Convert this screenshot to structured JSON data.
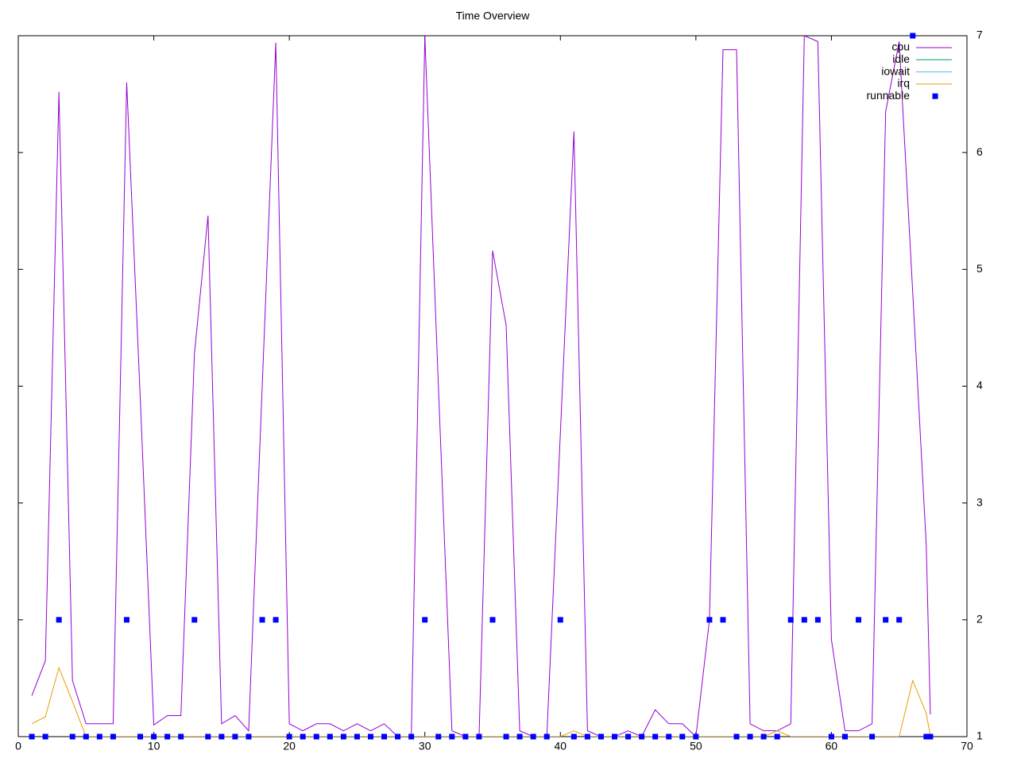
{
  "chart_data": {
    "type": "line",
    "title": "Time Overview",
    "x": [
      1,
      2,
      3,
      4,
      5,
      6,
      7,
      8,
      9,
      10,
      11,
      12,
      13,
      14,
      15,
      16,
      17,
      18,
      19,
      20,
      21,
      22,
      23,
      24,
      25,
      26,
      27,
      28,
      29,
      30,
      31,
      32,
      33,
      34,
      35,
      36,
      37,
      38,
      39,
      40,
      41,
      42,
      43,
      44,
      45,
      46,
      47,
      48,
      49,
      50,
      51,
      52,
      53,
      54,
      55,
      56,
      57,
      58,
      59,
      60,
      61,
      62,
      63,
      64,
      65,
      66,
      67,
      67.3
    ],
    "xlim": [
      0,
      70
    ],
    "xticks": [
      0,
      10,
      20,
      30,
      40,
      50,
      60,
      70
    ],
    "ylim": [
      1,
      7
    ],
    "yticks": [
      1,
      2,
      3,
      4,
      5,
      6,
      7
    ],
    "grid": false,
    "legend": "top-right",
    "series": [
      {
        "name": "cpu",
        "color": "#9400d3",
        "style": "lines",
        "values": [
          1.35,
          1.65,
          6.52,
          1.48,
          1.11,
          1.11,
          1.11,
          6.6,
          3.9,
          1.1,
          1.18,
          1.18,
          4.28,
          5.46,
          1.11,
          1.18,
          1.05,
          4.0,
          6.94,
          1.11,
          1.05,
          1.11,
          1.11,
          1.05,
          1.11,
          1.05,
          1.11,
          1.0,
          1.0,
          7.0,
          4.0,
          1.05,
          1.0,
          1.0,
          5.16,
          4.52,
          1.05,
          1.0,
          1.0,
          3.6,
          6.18,
          1.05,
          1.0,
          1.0,
          1.05,
          1.0,
          1.23,
          1.11,
          1.11,
          1.0,
          2.0,
          6.88,
          6.88,
          1.11,
          1.05,
          1.05,
          1.11,
          7.0,
          6.95,
          1.83,
          1.05,
          1.05,
          1.11,
          6.35,
          6.95,
          4.8,
          2.63,
          1.19
        ]
      },
      {
        "name": "idle",
        "color": "#009e73",
        "style": "lines",
        "values": [
          null,
          null,
          null,
          null,
          null,
          null,
          null,
          null,
          null,
          null,
          null,
          null,
          null,
          null,
          null,
          null,
          null,
          null,
          null,
          null,
          null,
          null,
          null,
          null,
          null,
          null,
          null,
          null,
          null,
          null,
          null,
          null,
          null,
          null,
          null,
          null,
          null,
          null,
          null,
          null,
          null,
          null,
          null,
          null,
          null,
          null,
          null,
          null,
          null,
          null,
          null,
          null,
          null,
          null,
          null,
          null,
          null,
          null,
          null,
          null,
          null,
          null,
          null,
          null,
          null,
          null,
          null,
          null
        ]
      },
      {
        "name": "iowait",
        "color": "#56b4e9",
        "style": "lines",
        "values": [
          null,
          null,
          null,
          null,
          null,
          null,
          null,
          null,
          null,
          null,
          null,
          null,
          null,
          null,
          null,
          null,
          null,
          null,
          null,
          null,
          null,
          null,
          null,
          null,
          null,
          null,
          null,
          null,
          null,
          null,
          null,
          null,
          null,
          null,
          null,
          null,
          null,
          null,
          null,
          null,
          null,
          null,
          null,
          null,
          null,
          null,
          null,
          null,
          null,
          null,
          null,
          null,
          null,
          null,
          null,
          null,
          null,
          null,
          null,
          null,
          null,
          null,
          null,
          null,
          null,
          null,
          null,
          null
        ]
      },
      {
        "name": "irq",
        "color": "#e69f00",
        "style": "lines",
        "values": [
          1.11,
          1.17,
          1.59,
          1.3,
          1.0,
          1.0,
          1.0,
          1.0,
          1.0,
          1.0,
          1.0,
          1.0,
          1.0,
          1.0,
          1.0,
          1.0,
          1.0,
          1.0,
          1.0,
          1.0,
          1.0,
          1.0,
          1.0,
          1.0,
          1.0,
          1.0,
          1.0,
          1.0,
          1.0,
          1.0,
          1.0,
          1.0,
          1.0,
          1.0,
          1.0,
          1.0,
          1.0,
          1.0,
          1.0,
          1.0,
          1.05,
          1.0,
          1.0,
          1.0,
          1.0,
          1.0,
          1.0,
          1.0,
          1.0,
          1.0,
          1.0,
          1.0,
          1.0,
          1.0,
          1.0,
          1.05,
          1.0,
          1.0,
          1.0,
          1.0,
          1.0,
          1.0,
          1.0,
          1.0,
          1.0,
          1.48,
          1.2,
          1.0
        ]
      },
      {
        "name": "runnable",
        "color": "#0000ff",
        "style": "points",
        "values": [
          1,
          1,
          2,
          1,
          1,
          1,
          1,
          2,
          1,
          1,
          1,
          1,
          2,
          1,
          1,
          1,
          1,
          2,
          2,
          1,
          1,
          1,
          1,
          1,
          1,
          1,
          1,
          1,
          1,
          2,
          1,
          1,
          1,
          1,
          2,
          1,
          1,
          1,
          1,
          2,
          1,
          1,
          1,
          1,
          1,
          1,
          1,
          1,
          1,
          1,
          2,
          2,
          1,
          1,
          1,
          1,
          2,
          2,
          2,
          1,
          1,
          2,
          1,
          2,
          2,
          7,
          1,
          1
        ]
      }
    ]
  }
}
